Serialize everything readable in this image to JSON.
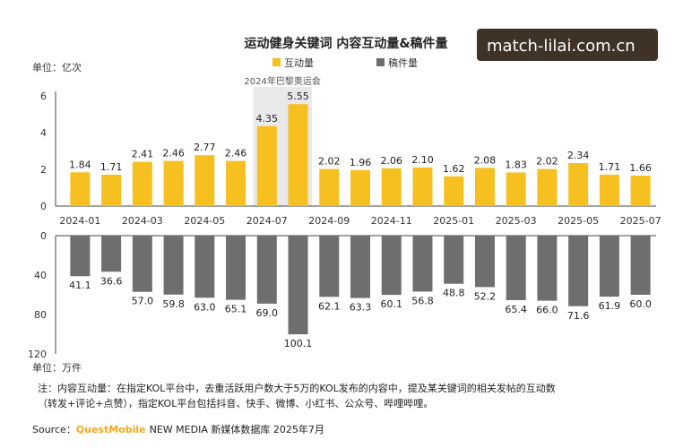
{
  "title": "运动健身关键词 内容互动量&稿件量",
  "watermark": "match-lilai.com.cn",
  "units": {
    "top": "单位：亿次",
    "bottom": "单位：万件"
  },
  "legend": {
    "interaction": "互动量",
    "articles": "稿件量"
  },
  "highlight_label": "2024年巴黎奥运会",
  "note": {
    "line1": "注：内容互动量：在指定KOL平台中，去重活跃用户数大于5万的KOL发布的内容中，提及某关键词的相关发帖的互动数",
    "line2": "（转发+评论+点赞），指定KOL平台包括抖音、快手、微博、小红书、公众号、哔哩哔哩。"
  },
  "source": {
    "label": "Source：",
    "brand": "QuestMobile",
    "rest": "NEW MEDIA 新媒体数据库 2025年7月"
  },
  "colors": {
    "interaction": "#f6c020",
    "articles": "#6e6e6e",
    "highlight_bg": "#e9e9e9"
  },
  "chart_data": [
    {
      "type": "bar",
      "name": "互动量",
      "unit": "亿次",
      "categories": [
        "2024-01",
        "2024-02",
        "2024-03",
        "2024-04",
        "2024-05",
        "2024-06",
        "2024-07",
        "2024-08",
        "2024-09",
        "2024-10",
        "2024-11",
        "2024-12",
        "2025-01",
        "2025-02",
        "2025-03",
        "2025-04",
        "2025-05",
        "2025-06",
        "2025-07"
      ],
      "tick_labels": [
        "2024-01",
        "",
        "2024-03",
        "",
        "2024-05",
        "",
        "2024-07",
        "",
        "2024-09",
        "",
        "2024-11",
        "",
        "2025-01",
        "",
        "2025-03",
        "",
        "2025-05",
        "",
        "2025-07"
      ],
      "values": [
        1.84,
        1.71,
        2.41,
        2.46,
        2.77,
        2.46,
        4.35,
        5.55,
        2.02,
        1.96,
        2.06,
        2.1,
        1.62,
        2.08,
        1.83,
        2.02,
        2.34,
        1.71,
        1.66
      ],
      "value_labels": [
        "1.84",
        "1.71",
        "2.41",
        "2.46",
        "2.77",
        "2.46",
        "4.35",
        "5.55",
        "2.02",
        "1.96",
        "2.06",
        "2.10",
        "1.62",
        "2.08",
        "1.83",
        "2.02",
        "2.34",
        "1.71",
        "1.66"
      ],
      "ylim": [
        0,
        6
      ],
      "yticks": [
        "0",
        "2",
        "4",
        "6"
      ],
      "highlight_range": [
        "2024-07",
        "2024-08"
      ]
    },
    {
      "type": "bar",
      "name": "稿件量",
      "unit": "万件",
      "orientation": "downward",
      "categories": [
        "2024-01",
        "2024-02",
        "2024-03",
        "2024-04",
        "2024-05",
        "2024-06",
        "2024-07",
        "2024-08",
        "2024-09",
        "2024-10",
        "2024-11",
        "2024-12",
        "2025-01",
        "2025-02",
        "2025-03",
        "2025-04",
        "2025-05",
        "2025-06",
        "2025-07"
      ],
      "values": [
        41.1,
        36.6,
        57.0,
        59.8,
        63.0,
        65.1,
        69.0,
        100.1,
        62.1,
        63.3,
        60.1,
        56.8,
        48.8,
        52.2,
        65.4,
        66.0,
        71.6,
        61.9,
        60.0
      ],
      "value_labels": [
        "41.1",
        "36.6",
        "57.0",
        "59.8",
        "63.0",
        "65.1",
        "69.0",
        "100.1",
        "62.1",
        "63.3",
        "60.1",
        "56.8",
        "48.8",
        "52.2",
        "65.4",
        "66.0",
        "71.6",
        "61.9",
        "60.0"
      ],
      "ylim": [
        0,
        120
      ],
      "yticks": [
        "0",
        "40",
        "80",
        "120"
      ]
    }
  ]
}
